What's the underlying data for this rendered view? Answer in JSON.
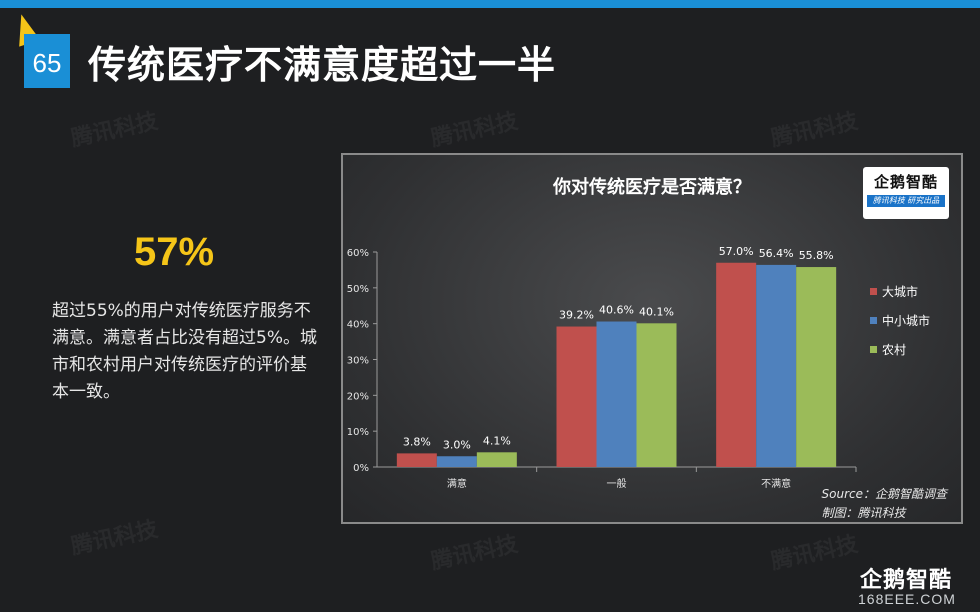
{
  "slide": {
    "page_number": "65",
    "title": "传统医疗不满意度超过一半",
    "big_stat": "57%",
    "description": "超过55%的用户对传统医疗服务不满意。满意者占比没有超过5%。城市和农村用户对传统医疗的评价基本一致。",
    "watermark": "腾讯科技",
    "brand_logo": "企鹅智酷",
    "site": "168EEE.COM"
  },
  "chart_logo": {
    "name": "企鹅智酷",
    "tagline": "腾讯科技 研究出品"
  },
  "source": {
    "line1": "Source：企鹅智酷调查",
    "line2": "制图：腾讯科技"
  },
  "colors": {
    "accent_blue": "#1a8fd6",
    "stat_yellow": "#f5c518",
    "series": [
      "#c0504d",
      "#4f81bd",
      "#9bbb59"
    ]
  },
  "chart_data": {
    "type": "bar",
    "title": "你对传统医疗是否满意？",
    "categories": [
      "满意",
      "一般",
      "不满意"
    ],
    "series": [
      {
        "name": "大城市",
        "values": [
          3.8,
          39.2,
          57.0
        ],
        "labels": [
          "3.8%",
          "39.2%",
          "57.0%"
        ]
      },
      {
        "name": "中小城市",
        "values": [
          3.0,
          40.6,
          56.4
        ],
        "labels": [
          "3.0%",
          "40.6%",
          "56.4%"
        ]
      },
      {
        "name": "农村",
        "values": [
          4.1,
          40.1,
          55.8
        ],
        "labels": [
          "4.1%",
          "40.1%",
          "55.8%"
        ]
      }
    ],
    "ylim": [
      0,
      60
    ],
    "y_ticks": [
      "0%",
      "10%",
      "20%",
      "30%",
      "40%",
      "50%",
      "60%"
    ],
    "grid": false,
    "legend_position": "right"
  }
}
